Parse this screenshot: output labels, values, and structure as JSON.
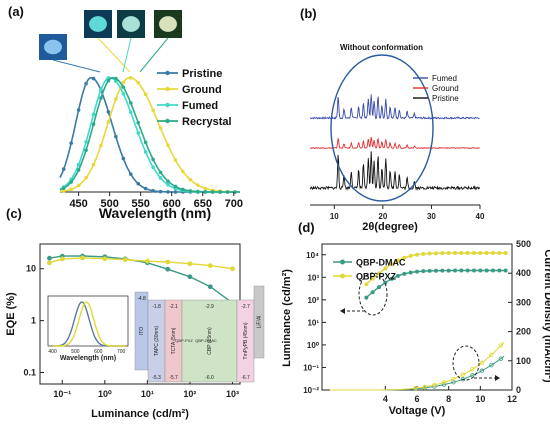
{
  "panels": {
    "a": {
      "letter": "(a)"
    },
    "b": {
      "letter": "(b)"
    },
    "c": {
      "letter": "(c)"
    },
    "d": {
      "letter": "(d)"
    }
  },
  "chart_data": [
    {
      "id": "a",
      "type": "line",
      "xlabel": "Wavelength (nm)",
      "xticks": [
        "450",
        "500",
        "550",
        "600",
        "650",
        "700"
      ],
      "xlim": [
        420,
        710
      ],
      "ylim": [
        0,
        1.05
      ],
      "legend_position": "right",
      "series": [
        {
          "name": "Pristine",
          "color": "#3a7aa8",
          "peak": 470,
          "fwhm": 68
        },
        {
          "name": "Ground",
          "color": "#e8d838",
          "peak": 532,
          "fwhm": 95
        },
        {
          "name": "Fumed",
          "color": "#40d8c8",
          "peak": 500,
          "fwhm": 82
        },
        {
          "name": "Recrystal",
          "color": "#2aaa8a",
          "peak": 505,
          "fwhm": 84
        }
      ],
      "photos": [
        "Pristine",
        "Ground",
        "Fumed",
        "Recrystal"
      ]
    },
    {
      "id": "b",
      "type": "line",
      "annotation": "Without conformation",
      "xlabel": "2θ(degree)",
      "xticks": [
        "10",
        "20",
        "30",
        "40"
      ],
      "xlim": [
        5,
        40
      ],
      "legend_position": "top-right",
      "series": [
        {
          "name": "Fumed",
          "color": "#3a4aa8",
          "offset": 2
        },
        {
          "name": "Ground",
          "color": "#e03030",
          "offset": 1
        },
        {
          "name": "Pristine",
          "color": "#111111",
          "offset": 0
        }
      ]
    },
    {
      "id": "c",
      "type": "scatter",
      "xlabel": "Luminance (cd/m²)",
      "ylabel": "EQE (%)",
      "xscale": "log",
      "yscale": "log",
      "xlim": [
        0.03,
        1500
      ],
      "ylim": [
        0.06,
        30
      ],
      "xticks": [
        "10⁻¹",
        "10⁰",
        "10¹",
        "10²",
        "10³"
      ],
      "yticks": [
        "0.1",
        "1",
        "10"
      ],
      "series": [
        {
          "name": "QBP-DMAC",
          "color": "#3a9a86",
          "points": [
            [
              0.05,
              16
            ],
            [
              0.1,
              17.5
            ],
            [
              0.3,
              17.6
            ],
            [
              1,
              17
            ],
            [
              3,
              15.5
            ],
            [
              10,
              13
            ],
            [
              30,
              9.8
            ],
            [
              100,
              7
            ],
            [
              300,
              4.5
            ],
            [
              1000,
              2.2
            ]
          ]
        },
        {
          "name": "QBP-PXZ",
          "color": "#e0d838",
          "points": [
            [
              0.05,
              13
            ],
            [
              0.1,
              15.5
            ],
            [
              0.3,
              16.2
            ],
            [
              1,
              15.6
            ],
            [
              3,
              15
            ],
            [
              10,
              14
            ],
            [
              30,
              13.5
            ],
            [
              100,
              12.5
            ],
            [
              300,
              11.5
            ],
            [
              1000,
              10
            ]
          ]
        }
      ],
      "inset_spectrum": {
        "xlabel": "Wavelength (nm)",
        "xticks": [
          "400",
          "500",
          "600",
          "700"
        ],
        "series": [
          {
            "name": "QBP-DMAC",
            "color": "#5a7a9a",
            "peak": 528
          },
          {
            "name": "QBP-PXZ",
            "color": "#e0d838",
            "peak": 548
          }
        ]
      },
      "inset_device": {
        "layers": [
          {
            "label": "ITO",
            "top": "-4.8",
            "bottom": "",
            "color": "#b9c8e8"
          },
          {
            "label": "TAPC (30nm)",
            "top": "-1.8",
            "bottom": "-5.3",
            "color": "#c9cfe8"
          },
          {
            "label": "TCTA (5nm)",
            "top": "-2.1",
            "bottom": "-5.7",
            "color": "#f0c8cc"
          },
          {
            "label": "CBP (15nm)",
            "top": "-2.9",
            "bottom": "-6.0",
            "color": "#cfe4c6"
          },
          {
            "label": "TmPyPB (45nm)",
            "top": "-2.7",
            "bottom": "-6.7",
            "color": "#f3d2e4"
          },
          {
            "label": "LiF/Al",
            "top": "",
            "bottom": "",
            "color": "#c9c9cc"
          }
        ],
        "emitters": [
          "QBP-PXZ",
          "QBP-DMAC"
        ]
      }
    },
    {
      "id": "d",
      "type": "line",
      "xlabel": "Voltage (V)",
      "ylabel": "Luminance (cd/m²)",
      "ylabel_right": "Current Density (mA/cm²)",
      "xlim": [
        0,
        12
      ],
      "xticks": [
        "4",
        "6",
        "8",
        "10",
        "12"
      ],
      "yticks_left": [
        "10⁻²",
        "10⁻¹",
        "10⁰",
        "10¹",
        "10²",
        "10³",
        "10⁴"
      ],
      "yticks_right": [
        "0",
        "100",
        "200",
        "300",
        "400",
        "500"
      ],
      "ylim_left": [
        0.01,
        30000
      ],
      "ylim_right": [
        0,
        500
      ],
      "legend_position": "top-left",
      "series": [
        {
          "name": "QBP-DMAC",
          "color": "#3a9a86",
          "luminance_max": 2000,
          "current_max": 120
        },
        {
          "name": "QBP-PXZ",
          "color": "#e0d838",
          "luminance_max": 12000,
          "current_max": 170
        }
      ]
    }
  ]
}
